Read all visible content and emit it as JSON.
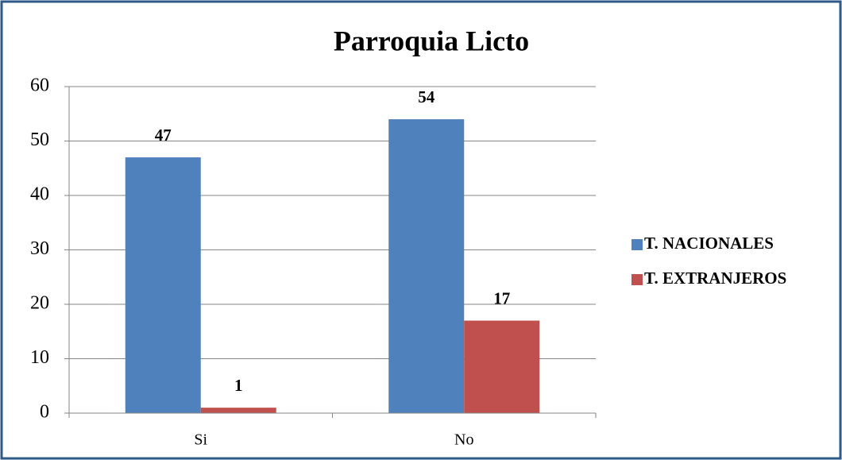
{
  "chart_data": {
    "type": "bar",
    "title": "Parroquia Licto",
    "categories": [
      "Si",
      "No"
    ],
    "series": [
      {
        "name": "T. NACIONALES",
        "color": "#4f81bd",
        "values": [
          47,
          54
        ]
      },
      {
        "name": "T. EXTRANJEROS",
        "color": "#c0504d",
        "values": [
          1,
          17
        ]
      }
    ],
    "ylim": [
      0,
      60
    ],
    "yticks": [
      0,
      10,
      20,
      30,
      40,
      50,
      60
    ],
    "grid": true,
    "legend": "right"
  }
}
